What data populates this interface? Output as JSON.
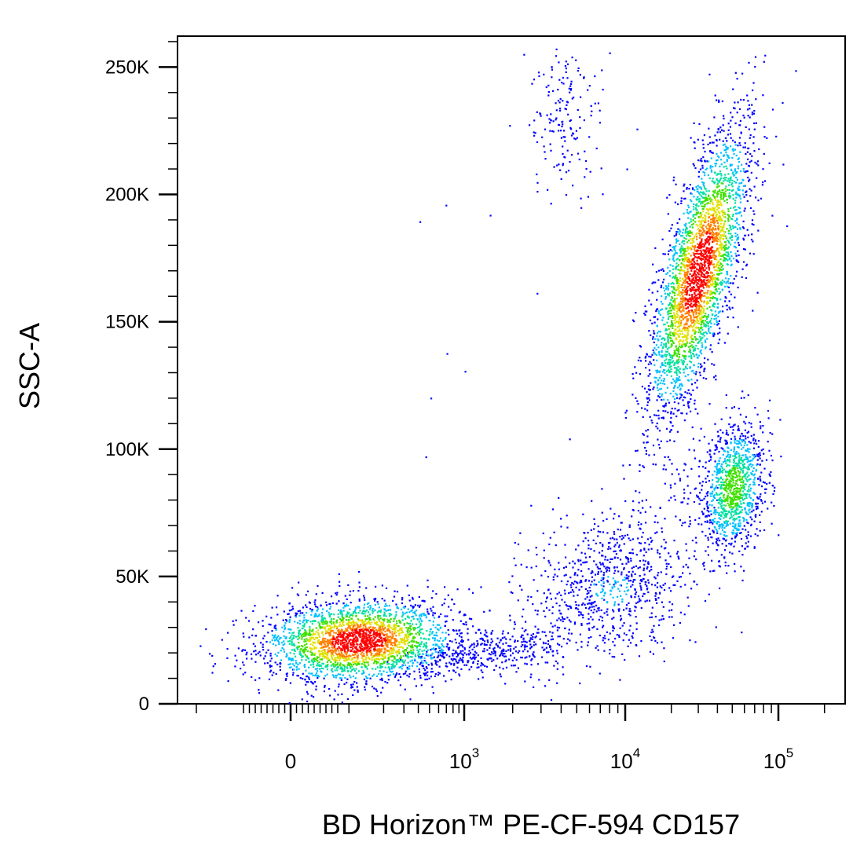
{
  "chart_data": {
    "type": "scatter",
    "subtype": "flow-cytometry-density-dot-plot",
    "title": "",
    "xlabel": "BD Horizon™ PE-CF-594 CD157",
    "ylabel": "SSC-A",
    "x_scale": "biexponential",
    "y_scale": "linear",
    "ylim": [
      0,
      262144
    ],
    "y_ticks": [
      {
        "value": 0,
        "label": "0"
      },
      {
        "value": 50000,
        "label": "50K"
      },
      {
        "value": 100000,
        "label": "100K"
      },
      {
        "value": 150000,
        "label": "150K"
      },
      {
        "value": 200000,
        "label": "200K"
      },
      {
        "value": 250000,
        "label": "250K"
      }
    ],
    "x_ticks": [
      {
        "value": 0,
        "base": "0",
        "exp": ""
      },
      {
        "value": 1000,
        "base": "10",
        "exp": "3"
      },
      {
        "value": 10000,
        "base": "10",
        "exp": "4"
      },
      {
        "value": 100000,
        "base": "10",
        "exp": "5"
      }
    ],
    "grid": false,
    "legend": "none",
    "color_scale": [
      "#0000ff",
      "#00c0ff",
      "#00e0a0",
      "#40e000",
      "#e0e000",
      "#ff8000",
      "#ff0000"
    ],
    "populations": [
      {
        "x": 120,
        "y": 25000,
        "relative_density": 1.0
      },
      {
        "x": 1300,
        "y": 20000,
        "relative_density": 0.15
      },
      {
        "x": 4200,
        "y": 230000,
        "relative_density": 0.1
      },
      {
        "x": 8000,
        "y": 45000,
        "relative_density": 0.2
      },
      {
        "x": 30000,
        "y": 170000,
        "relative_density": 1.0
      },
      {
        "x": 50000,
        "y": 85000,
        "relative_density": 0.55
      }
    ]
  }
}
